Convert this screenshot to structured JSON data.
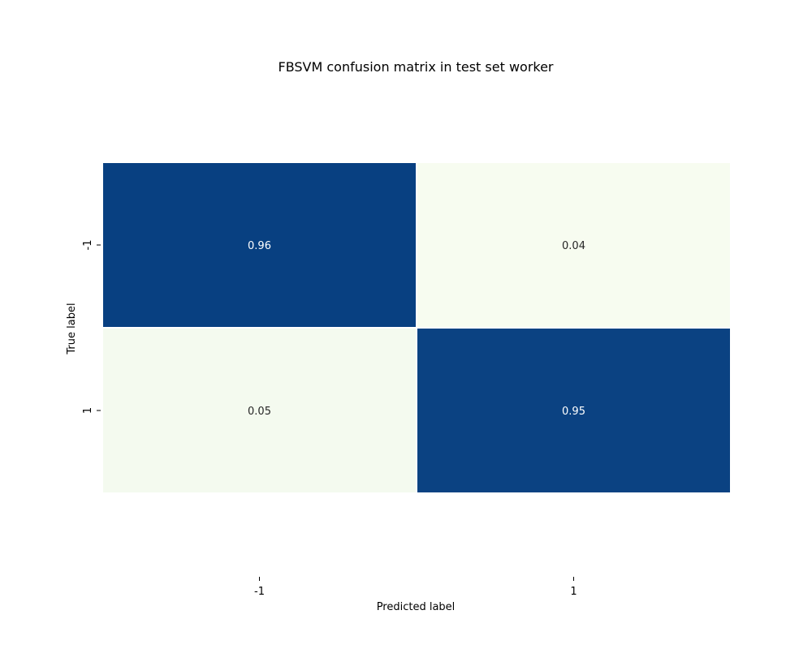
{
  "chart_data": {
    "type": "heatmap",
    "title": "FBSVM confusion matrix in test set worker",
    "xlabel": "Predicted label",
    "ylabel": "True label",
    "x_categories": [
      "-1",
      "1"
    ],
    "y_categories": [
      "-1",
      "1"
    ],
    "values": [
      [
        0.96,
        0.04
      ],
      [
        0.05,
        0.95
      ]
    ],
    "value_labels": [
      [
        "0.96",
        "0.04"
      ],
      [
        "0.05",
        "0.95"
      ]
    ],
    "colormap": {
      "low": "#f7fcf0",
      "high": "#084081",
      "name": "GnBu"
    },
    "vmin": 0.04,
    "vmax": 0.96,
    "colorbar": false,
    "grid": false
  }
}
